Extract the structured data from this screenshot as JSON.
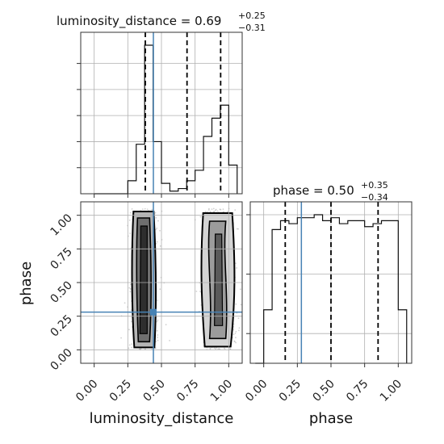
{
  "chart_data": {
    "type": "corner",
    "parameters": [
      "luminosity_distance",
      "phase"
    ],
    "truth": {
      "luminosity_distance": 0.44,
      "phase": 0.28
    },
    "truth_color": "#4682b4",
    "titles": [
      {
        "param": "luminosity_distance",
        "median": "0.69",
        "plus": "+0.25",
        "minus": "−0.31"
      },
      {
        "param": "phase",
        "median": "0.50",
        "plus": "+0.35",
        "minus": "−0.34"
      }
    ],
    "xlabels": [
      "luminosity_distance",
      "phase"
    ],
    "ylabel": "phase",
    "axis_range": [
      -0.1,
      1.1
    ],
    "ticks": [
      0.0,
      0.25,
      0.5,
      0.75,
      1.0
    ],
    "tick_labels": [
      "0.00",
      "0.25",
      "0.50",
      "0.75",
      "1.00"
    ],
    "grid": true,
    "hist_luminosity_distance": {
      "bin_edges": [
        0.0,
        0.0625,
        0.125,
        0.1875,
        0.25,
        0.3125,
        0.375,
        0.4375,
        0.5,
        0.5625,
        0.625,
        0.6875,
        0.75,
        0.8125,
        0.875,
        0.9375,
        1.0,
        1.0625
      ],
      "counts": [
        0,
        0,
        0,
        0,
        5,
        19,
        57,
        20,
        4,
        1,
        2,
        5,
        9,
        22,
        29,
        34,
        11
      ],
      "quantiles": [
        0.38,
        0.69,
        0.94
      ]
    },
    "hist_phase": {
      "bin_edges": [
        -0.0625,
        0.0,
        0.0625,
        0.125,
        0.1875,
        0.25,
        0.3125,
        0.375,
        0.4375,
        0.5,
        0.5625,
        0.625,
        0.6875,
        0.75,
        0.8125,
        0.875,
        0.9375,
        1.0,
        1.0625
      ],
      "counts": [
        0,
        18,
        45,
        48,
        47,
        49,
        49,
        50,
        48,
        49,
        47,
        48,
        48,
        46,
        47,
        48,
        48,
        18
      ],
      "quantiles": [
        0.16,
        0.5,
        0.85
      ]
    },
    "scatter_clusters": [
      {
        "x_center": 0.37,
        "x_spread": 0.05,
        "y_range": [
          0.0,
          1.05
        ],
        "count": 700
      },
      {
        "x_center": 0.93,
        "x_spread": 0.06,
        "y_range": [
          0.0,
          1.05
        ],
        "count": 650
      }
    ]
  }
}
